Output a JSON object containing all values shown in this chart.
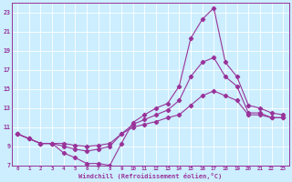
{
  "xlabel": "Windchill (Refroidissement éolien,°C)",
  "bg_color": "#cceeff",
  "grid_color": "#ffffff",
  "line_color": "#993399",
  "xlim": [
    -0.5,
    23.5
  ],
  "ylim": [
    7,
    24
  ],
  "xticks": [
    0,
    1,
    2,
    3,
    4,
    5,
    6,
    7,
    8,
    9,
    10,
    11,
    12,
    13,
    14,
    15,
    16,
    17,
    18,
    19,
    20,
    21,
    22,
    23
  ],
  "yticks": [
    7,
    9,
    11,
    13,
    15,
    17,
    19,
    21,
    23
  ],
  "line1_x": [
    0,
    1,
    2,
    3,
    4,
    5,
    6,
    7,
    8,
    9,
    10,
    11,
    12,
    13,
    14,
    15,
    16,
    17,
    18,
    19,
    20,
    21,
    22,
    23
  ],
  "line1_y": [
    10.3,
    9.8,
    9.3,
    9.3,
    8.3,
    7.8,
    7.2,
    7.2,
    7.0,
    9.3,
    11.5,
    12.3,
    13.0,
    13.5,
    15.3,
    20.3,
    22.3,
    23.5,
    17.8,
    16.3,
    13.3,
    13.0,
    12.5,
    12.3
  ],
  "line2_x": [
    0,
    1,
    2,
    3,
    4,
    5,
    6,
    7,
    8,
    9,
    10,
    11,
    12,
    13,
    14,
    15,
    16,
    17,
    18,
    19,
    20,
    21,
    22,
    23
  ],
  "line2_y": [
    10.3,
    9.8,
    9.3,
    9.3,
    9.0,
    8.7,
    8.5,
    8.7,
    9.0,
    10.3,
    11.3,
    11.8,
    12.3,
    12.8,
    13.8,
    16.3,
    17.8,
    18.3,
    16.3,
    15.3,
    12.5,
    12.5,
    12.0,
    12.0
  ],
  "line3_x": [
    0,
    1,
    2,
    3,
    4,
    5,
    6,
    7,
    8,
    9,
    10,
    11,
    12,
    13,
    14,
    15,
    16,
    17,
    18,
    19,
    20,
    21,
    22,
    23
  ],
  "line3_y": [
    10.3,
    9.8,
    9.3,
    9.3,
    9.3,
    9.1,
    9.0,
    9.1,
    9.3,
    10.3,
    11.0,
    11.3,
    11.6,
    12.0,
    12.3,
    13.3,
    14.3,
    14.8,
    14.3,
    13.8,
    12.3,
    12.3,
    12.0,
    12.0
  ]
}
